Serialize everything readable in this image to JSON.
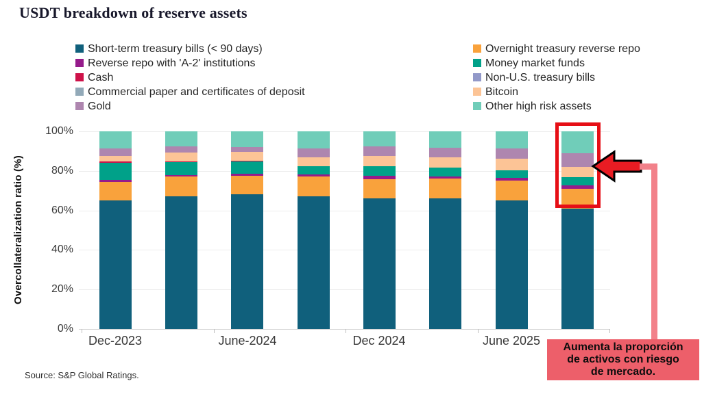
{
  "title": "USDT breakdown of reserve assets",
  "source": "Source: S&P Global Ratings.",
  "y_axis": {
    "label": "Overcollateralization ratio (%)",
    "ticks": [
      "100%",
      "80%",
      "60%",
      "40%",
      "20%",
      "0%"
    ]
  },
  "x_axis": {
    "labels": [
      "Dec-2023",
      "June-2024",
      "Dec 2024",
      "June 2025"
    ]
  },
  "legend": {
    "columns": [
      [
        {
          "label": "Short-term treasury bills (< 90 days)",
          "color": "#10607c"
        },
        {
          "label": "Reverse repo with 'A-2' institutions",
          "color": "#951b8b"
        },
        {
          "label": "Cash",
          "color": "#ce1249"
        },
        {
          "label": "Commercial paper and certificates of deposit",
          "color": "#92a9b8"
        },
        {
          "label": "Gold",
          "color": "#ae86af"
        }
      ],
      [
        {
          "label": "Overnight treasury reverse repo",
          "color": "#f9a23c"
        },
        {
          "label": "Money market funds",
          "color": "#00a189"
        },
        {
          "label": "Non-U.S. treasury bills",
          "color": "#9299c9"
        },
        {
          "label": "Bitcoin",
          "color": "#fcc496"
        },
        {
          "label": "Other high risk assets",
          "color": "#70cdb9"
        }
      ]
    ]
  },
  "annotation": {
    "lines": [
      "Aumenta la proporción",
      "de activos con riesgo",
      "de mercado."
    ],
    "box_color": "#ed5f6a",
    "arrow_color": "#e91c23",
    "highlight_border_color": "#e60f16",
    "connector_color": "#f2818a"
  },
  "chart_data": {
    "type": "bar",
    "stacked": true,
    "title": "USDT breakdown of reserve assets",
    "ylabel": "Overcollateralization ratio (%)",
    "ylim": [
      0,
      100
    ],
    "grid": "horizontal",
    "legend_position": "top",
    "categories": [
      "Dec-2023",
      "",
      "June-2024",
      "",
      "Dec 2024",
      "",
      "June 2025",
      ""
    ],
    "series": [
      {
        "name": "Short-term treasury bills (< 90 days)",
        "color": "#10607c",
        "values": [
          65,
          67,
          68,
          67,
          66,
          66,
          65,
          61
        ]
      },
      {
        "name": "Overnight treasury reverse repo",
        "color": "#f9a23c",
        "values": [
          9.5,
          10,
          9.5,
          10,
          9.8,
          10,
          10,
          10
        ]
      },
      {
        "name": "Reverse repo with 'A-2' institutions",
        "color": "#951b8b",
        "values": [
          1,
          1,
          1.2,
          1.2,
          1.8,
          1.2,
          1.4,
          1.6
        ]
      },
      {
        "name": "Money market funds",
        "color": "#00a189",
        "values": [
          8.5,
          6.5,
          6,
          4.3,
          4.9,
          4.4,
          3.8,
          4.1
        ]
      },
      {
        "name": "Cash",
        "color": "#ce1249",
        "values": [
          0.7,
          0.3,
          0.3,
          0,
          0,
          0,
          0,
          0
        ]
      },
      {
        "name": "Non-U.S. treasury bills",
        "color": "#9299c9",
        "values": [
          0,
          0,
          0,
          0,
          0,
          0,
          0,
          0
        ]
      },
      {
        "name": "Commercial paper and certificates of deposit",
        "color": "#92a9b8",
        "values": [
          0,
          0,
          0,
          0,
          0,
          0,
          0,
          0
        ]
      },
      {
        "name": "Bitcoin",
        "color": "#fcc496",
        "values": [
          3,
          4.5,
          4.5,
          4.5,
          5.2,
          5.1,
          6,
          5.4
        ]
      },
      {
        "name": "Gold",
        "color": "#ae86af",
        "values": [
          3.5,
          3,
          2.5,
          4.5,
          4.6,
          5,
          5.2,
          6.9
        ]
      },
      {
        "name": "Other high risk assets",
        "color": "#70cdb9",
        "values": [
          8.8,
          7.7,
          8,
          8.5,
          7.7,
          8.3,
          8.6,
          11
        ]
      }
    ]
  }
}
